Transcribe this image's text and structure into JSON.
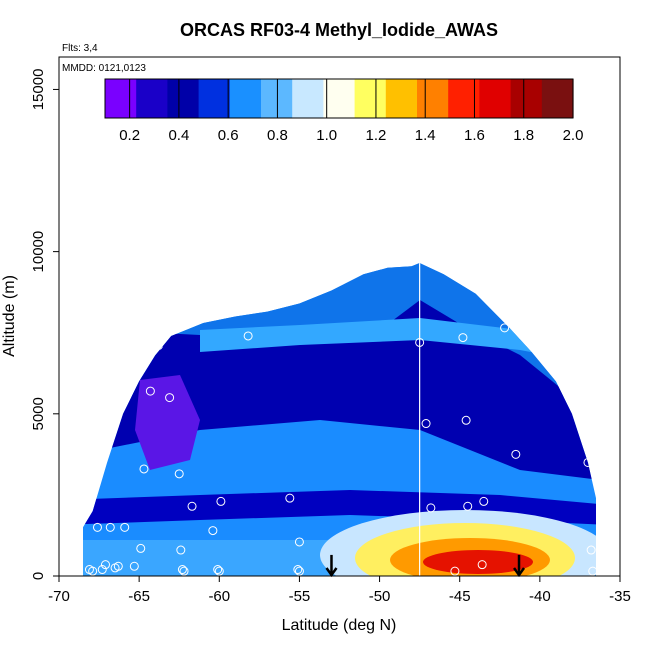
{
  "chart_data": {
    "type": "heatmap",
    "title": "ORCAS RF03-4 Methyl_Iodide_AWAS",
    "xlabel": "Latitude (deg N)",
    "ylabel": "Altitude (m)",
    "flights_note": "Flts: 3,4",
    "dates_note": "MMDD: 0121,0123",
    "xlim": [
      -70,
      -35
    ],
    "ylim": [
      0,
      16000
    ],
    "x_ticks": [
      -70,
      -65,
      -60,
      -55,
      -50,
      -45,
      -40,
      -35
    ],
    "x_tick_labels": [
      "-70",
      "-65",
      "-60",
      "-55",
      "-50",
      "-45",
      "-40",
      "-35"
    ],
    "y_ticks": [
      0,
      5000,
      10000,
      15000
    ],
    "y_tick_labels": [
      "0",
      "5000",
      "10000",
      "15000"
    ],
    "colorbar": {
      "range": [
        0.1,
        2.0
      ],
      "ticks": [
        0.2,
        0.4,
        0.6,
        0.8,
        1.0,
        1.2,
        1.4,
        1.6,
        1.8,
        2.0
      ],
      "tick_labels": [
        "0.2",
        "0.4",
        "0.6",
        "0.8",
        "1.0",
        "1.2",
        "1.4",
        "1.6",
        "1.8",
        "2.0"
      ],
      "colors": [
        "#7a00ff",
        "#1a00c8",
        "#0000a8",
        "#0030e0",
        "#1a90ff",
        "#5cb8ff",
        "#c8e8ff",
        "#fffff0",
        "#ffff60",
        "#ffc000",
        "#ff8000",
        "#ff2000",
        "#e00000",
        "#a80000",
        "#7a1010"
      ]
    },
    "envelope_lat": [
      -68.5,
      -67.9,
      -67,
      -66,
      -65,
      -64,
      -63,
      -61,
      -59,
      -57,
      -55,
      -53,
      -51,
      -49.5,
      -48,
      -47.5,
      -46,
      -44,
      -42,
      -40.5,
      -39,
      -38,
      -37,
      -36.5
    ],
    "envelope_alt": [
      1500,
      2000,
      3500,
      5000,
      6000,
      6800,
      7400,
      7800,
      8000,
      8150,
      8400,
      8800,
      9300,
      9500,
      9550,
      9650,
      9300,
      8700,
      7700,
      6900,
      6000,
      5000,
      3500,
      2400
    ],
    "flight_track_lat": -47.5,
    "flight_track_alt_range": [
      0,
      9750
    ],
    "arrow_markers_lat": [
      -53,
      -41.3
    ],
    "sample_points": [
      {
        "lat": -68.1,
        "alt": 200
      },
      {
        "lat": -67.9,
        "alt": 150
      },
      {
        "lat": -67.3,
        "alt": 200
      },
      {
        "lat": -67.1,
        "alt": 350
      },
      {
        "lat": -66.5,
        "alt": 250
      },
      {
        "lat": -66.3,
        "alt": 300
      },
      {
        "lat": -65.3,
        "alt": 300
      },
      {
        "lat": -62.3,
        "alt": 200
      },
      {
        "lat": -62.2,
        "alt": 150
      },
      {
        "lat": -60.1,
        "alt": 200
      },
      {
        "lat": -60.0,
        "alt": 150
      },
      {
        "lat": -55.1,
        "alt": 200
      },
      {
        "lat": -55.0,
        "alt": 150
      },
      {
        "lat": -45.3,
        "alt": 150
      },
      {
        "lat": -43.6,
        "alt": 350
      },
      {
        "lat": -36.7,
        "alt": 150
      },
      {
        "lat": -67.6,
        "alt": 1500
      },
      {
        "lat": -66.8,
        "alt": 1500
      },
      {
        "lat": -65.9,
        "alt": 1500
      },
      {
        "lat": -64.9,
        "alt": 850
      },
      {
        "lat": -62.4,
        "alt": 800
      },
      {
        "lat": -60.4,
        "alt": 1400
      },
      {
        "lat": -55.0,
        "alt": 1050
      },
      {
        "lat": -36.8,
        "alt": 800
      },
      {
        "lat": -61.7,
        "alt": 2150
      },
      {
        "lat": -59.9,
        "alt": 2300
      },
      {
        "lat": -55.6,
        "alt": 2400
      },
      {
        "lat": -46.8,
        "alt": 2100
      },
      {
        "lat": -44.5,
        "alt": 2150
      },
      {
        "lat": -43.5,
        "alt": 2300
      },
      {
        "lat": -36.1,
        "alt": 2400
      },
      {
        "lat": -64.7,
        "alt": 3300
      },
      {
        "lat": -62.5,
        "alt": 3150
      },
      {
        "lat": -41.5,
        "alt": 3750
      },
      {
        "lat": -37.0,
        "alt": 3500
      },
      {
        "lat": -64.3,
        "alt": 5700
      },
      {
        "lat": -63.1,
        "alt": 5500
      },
      {
        "lat": -47.1,
        "alt": 4700
      },
      {
        "lat": -44.6,
        "alt": 4800
      },
      {
        "lat": -63.8,
        "alt": 7100
      },
      {
        "lat": -58.2,
        "alt": 7400
      },
      {
        "lat": -47.5,
        "alt": 7200
      },
      {
        "lat": -44.8,
        "alt": 7350
      },
      {
        "lat": -42.2,
        "alt": 7650
      },
      {
        "lat": -37.4,
        "alt": 6100
      }
    ]
  }
}
